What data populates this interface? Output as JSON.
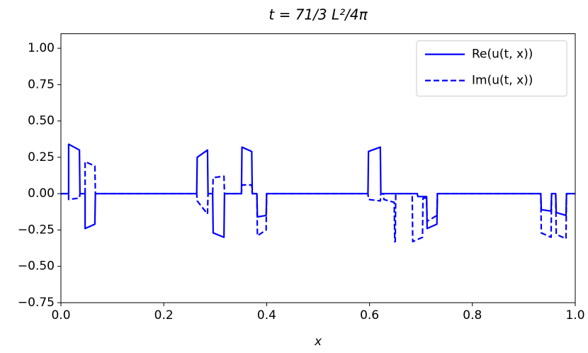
{
  "chart_data": {
    "type": "line",
    "title": "t = 71/3 L²/4π",
    "xlabel": "x",
    "xlim": [
      0,
      1
    ],
    "ylim": [
      -0.75,
      1.1
    ],
    "xticks": [
      {
        "value": 0,
        "label": "0.0"
      },
      {
        "value": 0.2,
        "label": "0.2"
      },
      {
        "value": 0.4,
        "label": "0.4"
      },
      {
        "value": 0.6,
        "label": "0.6"
      },
      {
        "value": 0.8,
        "label": "0.8"
      },
      {
        "value": 1,
        "label": "1.0"
      }
    ],
    "yticks": [
      {
        "value": -0.75,
        "label": "−0.75"
      },
      {
        "value": -0.5,
        "label": "−0.50"
      },
      {
        "value": -0.25,
        "label": "−0.25"
      },
      {
        "value": 0,
        "label": "0.00"
      },
      0.25,
      {
        "value": 0.5,
        "label": "0.50"
      },
      0.75,
      {
        "value": 1,
        "label": "1.00"
      }
    ],
    "legend": "upper right",
    "series": [
      {
        "name": "Re(u(t, x))",
        "color": "#0000ff",
        "linestyle": "solid",
        "x": [
          0,
          0.015,
          0.015,
          0.036,
          0.037,
          0.047,
          0.047,
          0.066,
          0.067,
          0.264,
          0.265,
          0.285,
          0.286,
          0.295,
          0.296,
          0.317,
          0.318,
          0.351,
          0.352,
          0.371,
          0.372,
          0.381,
          0.382,
          0.399,
          0.4,
          0.597,
          0.598,
          0.621,
          0.622,
          0.693,
          0.694,
          0.711,
          0.712,
          0.731,
          0.732,
          0.933,
          0.934,
          0.953,
          0.954,
          0.962,
          0.963,
          0.982,
          0.983,
          1.0
        ],
        "values": [
          0,
          0,
          0.34,
          0.3,
          0,
          0,
          -0.24,
          -0.21,
          0,
          0,
          0.25,
          0.3,
          0,
          0,
          -0.27,
          -0.3,
          0,
          0,
          0.32,
          0.29,
          0,
          0,
          -0.16,
          -0.15,
          0,
          0,
          0.29,
          0.32,
          0,
          0,
          -0.02,
          -0.02,
          -0.24,
          -0.21,
          0,
          0,
          -0.11,
          -0.12,
          0,
          0,
          -0.13,
          -0.15,
          0,
          0
        ]
      },
      {
        "name": "Im(u(t, x))",
        "color": "#0000ff",
        "linestyle": "dashed",
        "x": [
          0,
          0.015,
          0.015,
          0.036,
          0.037,
          0.047,
          0.047,
          0.066,
          0.067,
          0.264,
          0.265,
          0.285,
          0.286,
          0.295,
          0.296,
          0.317,
          0.318,
          0.351,
          0.352,
          0.371,
          0.372,
          0.381,
          0.382,
          0.399,
          0.4,
          0.597,
          0.598,
          0.621,
          0.622,
          0.627,
          0.628,
          0.648,
          0.649,
          0.65,
          0.651,
          0.683,
          0.684,
          0.703,
          0.704,
          0.711,
          0.712,
          0.731,
          0.732,
          0.933,
          0.934,
          0.953,
          0.954,
          0.962,
          0.963,
          0.982,
          0.983,
          1.0
        ],
        "values": [
          0,
          0,
          -0.04,
          -0.03,
          0,
          0,
          0.22,
          0.19,
          0,
          0,
          -0.05,
          -0.14,
          0,
          0,
          0.11,
          0.12,
          0,
          0,
          0.06,
          0.06,
          0,
          0,
          -0.29,
          -0.25,
          0,
          0,
          -0.04,
          -0.05,
          0,
          0,
          -0.04,
          -0.06,
          -0.33,
          -0.33,
          0,
          0,
          -0.33,
          -0.3,
          -0.03,
          -0.03,
          -0.19,
          -0.15,
          0,
          0,
          -0.27,
          -0.3,
          0,
          0,
          -0.28,
          -0.31,
          0,
          0
        ]
      }
    ]
  }
}
